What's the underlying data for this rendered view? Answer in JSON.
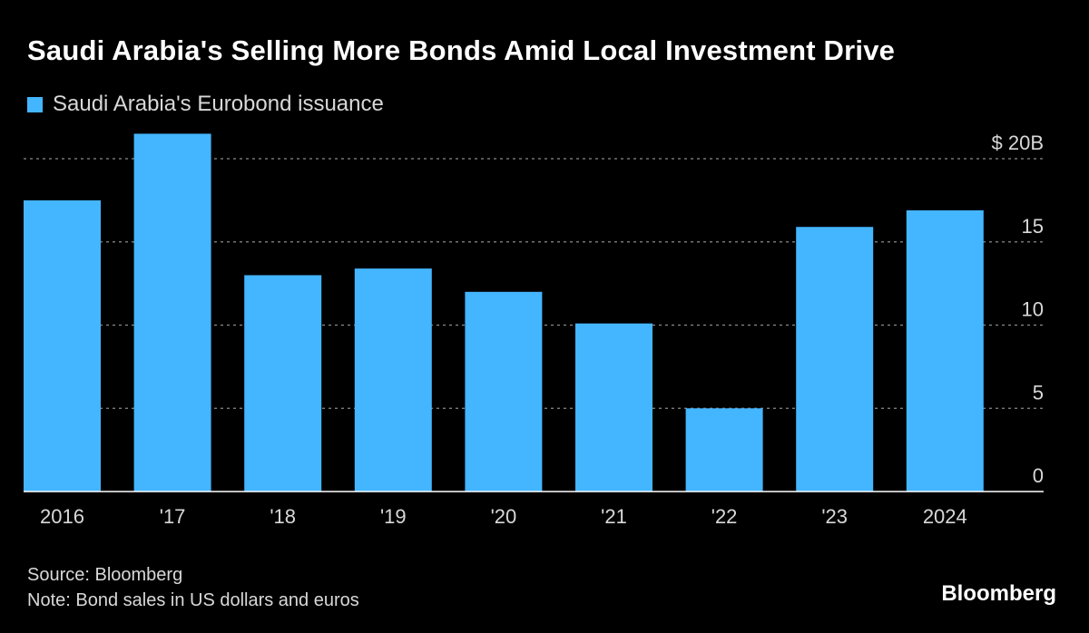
{
  "header": {
    "title": "Saudi Arabia's Selling More Bonds Amid Local Investment Drive"
  },
  "legend": {
    "label": "Saudi Arabia's Eurobond issuance"
  },
  "colors": {
    "background": "#000000",
    "bar": "#44b5ff",
    "grid": "#8a8a8a",
    "axis_text": "#d8d8d8"
  },
  "chart_data": {
    "type": "bar",
    "title": "Saudi Arabia's Selling More Bonds Amid Local Investment Drive",
    "xlabel": "",
    "ylabel": "",
    "categories": [
      "2016",
      "'17",
      "'18",
      "'19",
      "'20",
      "'21",
      "'22",
      "'23",
      "2024"
    ],
    "series": [
      {
        "name": "Saudi Arabia's Eurobond issuance",
        "values": [
          17.5,
          21.5,
          13,
          13.4,
          12,
          10.1,
          5,
          15.9,
          16.9
        ]
      }
    ],
    "ylim": [
      0,
      20
    ],
    "yticks": [
      0,
      5,
      10,
      15,
      20
    ],
    "ytick_labels": [
      "0",
      "5",
      "10",
      "15",
      "$ 20B"
    ],
    "grid": true,
    "legend_position": "top-left"
  },
  "footer": {
    "source": "Source: Bloomberg",
    "note": "Note: Bond sales in US dollars and euros",
    "brand": "Bloomberg"
  }
}
